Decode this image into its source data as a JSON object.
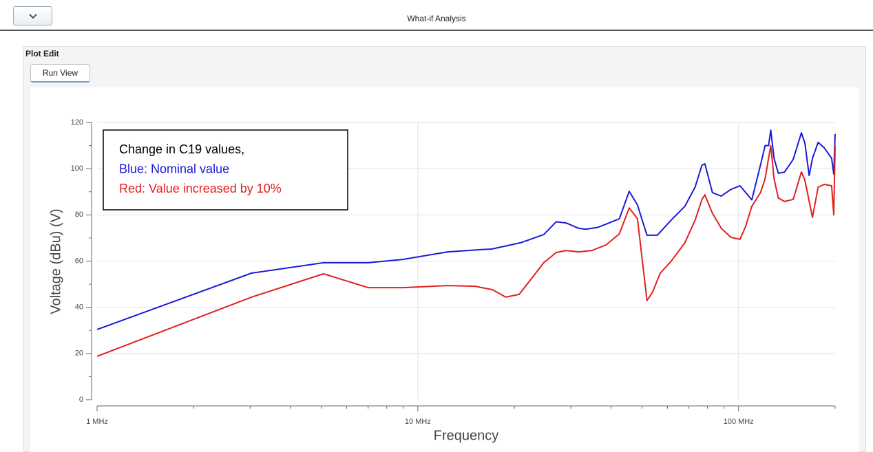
{
  "header": {
    "title": "What-if Analysis"
  },
  "panel": {
    "title": "Plot Edit",
    "button": "Run View"
  },
  "chart_data": {
    "type": "line",
    "xlabel": "Frequency",
    "ylabel": "Voltage (dBu) (V)",
    "xscale": "log",
    "xlim": [
      1,
      200
    ],
    "xticks": [
      {
        "value": 1,
        "label": "1 MHz"
      },
      {
        "value": 10,
        "label": "10 MHz"
      },
      {
        "value": 100,
        "label": "100 MHz"
      }
    ],
    "xminorticks": [
      2,
      3,
      4,
      5,
      6,
      7,
      8,
      9,
      20,
      30,
      40,
      50,
      60,
      70,
      80,
      90,
      200
    ],
    "ylim": [
      0,
      120
    ],
    "yticks": [
      0,
      20,
      40,
      60,
      80,
      100,
      120
    ],
    "yminorticks": [
      10,
      30,
      50,
      70,
      90,
      110
    ],
    "grid": true,
    "annotations": [
      {
        "text": "Change in C19 values,",
        "color": "#000000"
      },
      {
        "text": "Blue: Nominal value",
        "color": "#1a1adb"
      },
      {
        "text": "Red: Value increased by 10%",
        "color": "#e0201e"
      }
    ],
    "series": [
      {
        "color": "#1a1adb",
        "x": [
          1,
          3.03,
          5.08,
          7.0,
          8.97,
          12.4,
          15.8,
          17,
          21,
          24.7,
          27,
          29,
          31.7,
          33.3,
          36.2,
          38.6,
          42.5,
          45.6,
          48.4,
          51.8,
          55.8,
          61.6,
          68,
          73.2,
          76.9,
          78.5,
          82.9,
          88.3,
          94.6,
          101,
          110,
          117,
          121,
          124,
          126,
          129,
          133,
          139,
          148,
          157,
          161,
          166,
          170,
          177,
          185,
          195,
          198,
          200
        ],
        "values": [
          30.4,
          54.8,
          59.3,
          59.3,
          60.7,
          64,
          65,
          65.2,
          68,
          71.5,
          77,
          76.5,
          74.2,
          73.8,
          74.5,
          76,
          78.3,
          90.2,
          84.3,
          71.2,
          71.2,
          77.7,
          83.7,
          92,
          101.5,
          102.1,
          89.6,
          88.1,
          91,
          92.6,
          86.5,
          101.5,
          110,
          110,
          116.7,
          104.5,
          98,
          98.5,
          104,
          115.5,
          111,
          97,
          104.5,
          111.4,
          109,
          104.5,
          97.7,
          115
        ]
      },
      {
        "color": "#e0201e",
        "x": [
          1,
          3.03,
          5.08,
          7.0,
          8.97,
          12.4,
          15.1,
          17.1,
          18.8,
          20.7,
          24.7,
          27,
          29,
          31.7,
          34.9,
          38.6,
          42.5,
          45.6,
          48.4,
          51.8,
          53.9,
          57,
          61.6,
          68,
          73.2,
          76.9,
          78.5,
          82.9,
          88.3,
          94.6,
          101,
          105,
          110,
          117,
          121,
          124,
          126,
          129,
          133,
          139,
          148,
          157,
          161,
          170,
          177,
          185,
          195,
          198,
          200
        ],
        "values": [
          18.8,
          44.4,
          54.5,
          48.5,
          48.5,
          49.4,
          49.1,
          47.6,
          44.4,
          45.6,
          59.3,
          63.7,
          64.6,
          64,
          64.6,
          67,
          71.8,
          83,
          78.3,
          42.9,
          46.5,
          54.8,
          59.9,
          67.9,
          77.7,
          86.7,
          88.7,
          80.7,
          74.2,
          70.3,
          69.4,
          74.7,
          83.7,
          89.6,
          95.6,
          104.5,
          110,
          95.6,
          87.3,
          85.8,
          86.7,
          98.6,
          95,
          78.9,
          92,
          93.2,
          92.6,
          80,
          110
        ]
      }
    ]
  }
}
